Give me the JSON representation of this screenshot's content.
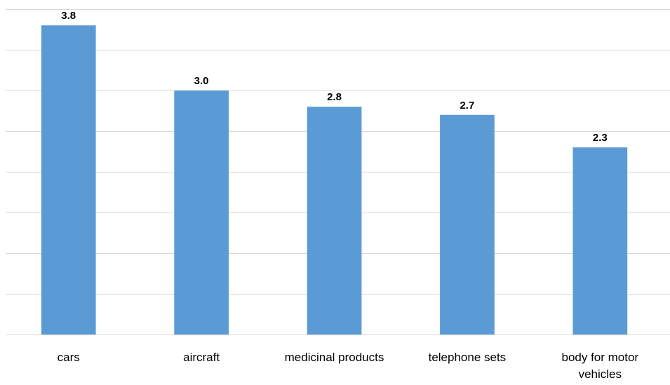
{
  "chart_data": {
    "type": "bar",
    "categories": [
      "cars",
      "aircraft",
      "medicinal products",
      "telephone sets",
      "body for motor vehicles"
    ],
    "values": [
      3.8,
      3.0,
      2.8,
      2.7,
      2.3
    ],
    "data_labels": [
      "3.8",
      "3.0",
      "2.8",
      "2.7",
      "2.3"
    ],
    "title": "",
    "xlabel": "",
    "ylabel": "",
    "ylim": [
      0,
      4.0
    ],
    "grid": true,
    "bar_color": "#5b9bd5",
    "grid_color": "#d9d9d9",
    "legend": "none"
  }
}
